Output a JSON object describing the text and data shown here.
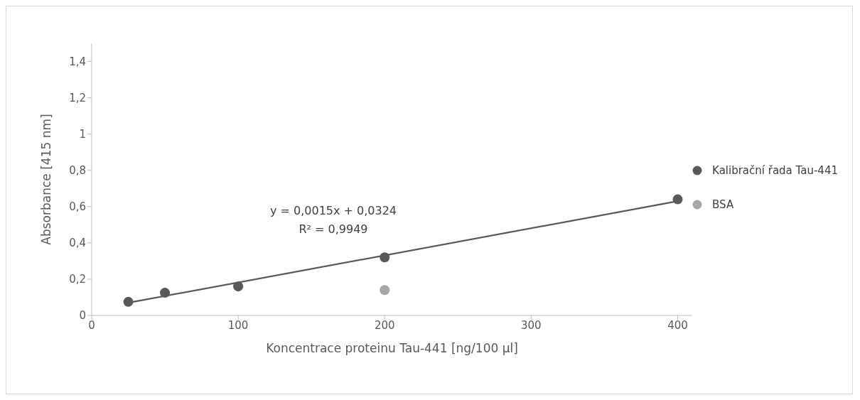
{
  "chart_data": {
    "type": "scatter",
    "xlabel": "Koncentrace proteinu Tau-441 [ng/100 µl]",
    "ylabel": "Absorbance [415 nm]",
    "xlim": [
      0,
      410
    ],
    "xticks": [
      0,
      100,
      200,
      300,
      400
    ],
    "ylim": [
      0,
      1.5
    ],
    "yticks": [
      0,
      {
        "value": 0.2,
        "label": "0,2"
      },
      {
        "value": 0.4,
        "label": "0,4"
      },
      {
        "value": 0.6,
        "label": "0,6"
      },
      {
        "value": 0.8,
        "label": "0,8"
      },
      1,
      {
        "value": 1.2,
        "label": "1,2"
      },
      {
        "value": 1.4,
        "label": "1,4"
      }
    ],
    "series": [
      {
        "name": "Kalibrační řada Tau-441",
        "color": "#595959",
        "x": [
          25,
          50,
          100,
          200,
          400
        ],
        "values": [
          0.075,
          0.125,
          0.16,
          0.32,
          0.64
        ]
      },
      {
        "name": "BSA",
        "color": "#a6a6a6",
        "x": [
          200
        ],
        "values": [
          0.14
        ]
      },
      {
        "type": "line",
        "color": "#595959",
        "marker": "none",
        "x": [
          25,
          400
        ],
        "values": [
          0.07,
          0.63
        ]
      }
    ],
    "annotations": [
      "y = 0,0015x + 0,0324",
      "R² = 0,9949"
    ],
    "legend": "right",
    "marker": "circle",
    "grid": false
  }
}
